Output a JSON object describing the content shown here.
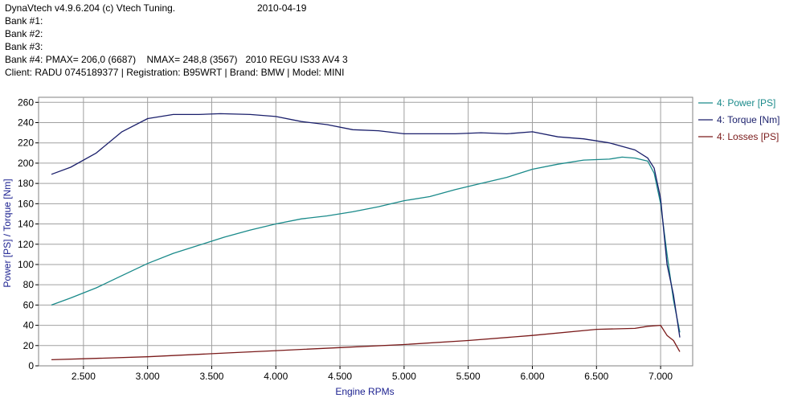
{
  "header": {
    "software": "DynaVtech v4.9.6.204 (c) Vtech Tuning.",
    "date": "2010-04-19",
    "bank1": "Bank #1:",
    "bank2": "Bank #2:",
    "bank3": "Bank #3:",
    "bank4": "Bank #4: PMAX= 206,0 (6687)    NMAX= 248,8 (3567)   2010 REGU IS33 AV4 3",
    "client": "Client: RADU 0745189377 | Registration: B95WRT | Brand: BMW | Model: MINI"
  },
  "chart_data": {
    "type": "line",
    "xlabel": "Engine RPMs",
    "ylabel": "Power [PS] / Torque [Nm]",
    "xlim": [
      2150,
      7250
    ],
    "ylim": [
      0,
      265
    ],
    "x_ticks": [
      2500,
      3000,
      3500,
      4000,
      4500,
      5000,
      5500,
      6000,
      6500,
      7000
    ],
    "x_tick_labels": [
      "2.500",
      "3.000",
      "3.500",
      "4.000",
      "4.500",
      "5.000",
      "5.500",
      "6.000",
      "6.500",
      "7.000"
    ],
    "y_ticks": [
      0,
      20,
      40,
      60,
      80,
      100,
      120,
      140,
      160,
      180,
      200,
      220,
      240,
      260
    ],
    "grid": true,
    "legend_position": "right",
    "series": [
      {
        "name": "4: Power [PS]",
        "color": "#1a8a8a",
        "x": [
          2250,
          2400,
          2600,
          2800,
          3000,
          3200,
          3400,
          3600,
          3800,
          4000,
          4200,
          4400,
          4600,
          4800,
          5000,
          5200,
          5400,
          5600,
          5800,
          6000,
          6200,
          6400,
          6600,
          6700,
          6800,
          6900,
          6950,
          7000,
          7050,
          7100,
          7150
        ],
        "values": [
          60,
          67,
          77,
          89,
          101,
          111,
          119,
          127,
          134,
          140,
          145,
          148,
          152,
          157,
          163,
          167,
          174,
          180,
          186,
          194,
          199,
          203,
          204,
          206,
          205,
          202,
          190,
          160,
          110,
          65,
          33
        ]
      },
      {
        "name": "4: Torque [Nm]",
        "color": "#1a1f6b",
        "x": [
          2250,
          2400,
          2600,
          2800,
          3000,
          3200,
          3400,
          3567,
          3800,
          4000,
          4200,
          4400,
          4600,
          4800,
          5000,
          5200,
          5400,
          5600,
          5800,
          6000,
          6200,
          6400,
          6600,
          6800,
          6900,
          6950,
          7000,
          7050,
          7100,
          7150
        ],
        "values": [
          189,
          196,
          210,
          231,
          244,
          248,
          248,
          248.8,
          248,
          246,
          241,
          238,
          233,
          232,
          229,
          229,
          229,
          230,
          229,
          231,
          226,
          224,
          220,
          213,
          205,
          195,
          165,
          100,
          70,
          28
        ]
      },
      {
        "name": "4: Losses [PS]",
        "color": "#7a1a1a",
        "x": [
          2250,
          2500,
          3000,
          3500,
          4000,
          4500,
          5000,
          5500,
          6000,
          6500,
          6800,
          6900,
          7000,
          7050,
          7100,
          7150
        ],
        "values": [
          6,
          7,
          9,
          12,
          15,
          18,
          21,
          25,
          30,
          36,
          37,
          39,
          40,
          30,
          25,
          14
        ]
      }
    ]
  }
}
